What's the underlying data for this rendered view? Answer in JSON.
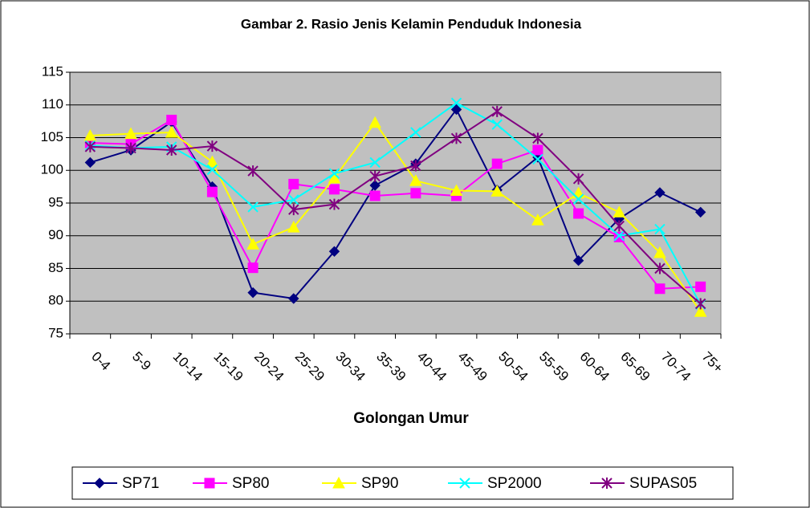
{
  "chart_data": {
    "type": "line",
    "title": "Gambar 2. Rasio Jenis Kelamin Penduduk Indonesia",
    "x_label": "Golongan Umur",
    "categories": [
      "0-4",
      "5-9",
      "10-14",
      "15-19",
      "20-24",
      "25-29",
      "30-34",
      "35-39",
      "40-44",
      "45-49",
      "50-54",
      "55-59",
      "60-64",
      "65-69",
      "70-74",
      "75+"
    ],
    "ylim": [
      75,
      115
    ],
    "yticks": [
      75,
      80,
      85,
      90,
      95,
      100,
      105,
      110,
      115
    ],
    "grid": true,
    "legend": "bottom",
    "series": [
      {
        "name": "SP71",
        "color": "#000080",
        "marker": "diamond",
        "values": [
          101.2,
          103.1,
          107.4,
          97.5,
          81.3,
          80.4,
          87.6,
          97.7,
          101.0,
          109.3,
          97.0,
          102.0,
          86.2,
          92.6,
          96.6,
          93.6
        ]
      },
      {
        "name": "SP80",
        "color": "#ff00ff",
        "marker": "square",
        "values": [
          104.2,
          104.0,
          107.7,
          96.7,
          85.1,
          97.9,
          97.1,
          96.1,
          96.5,
          96.1,
          101.0,
          103.1,
          93.4,
          89.8,
          81.9,
          82.2
        ]
      },
      {
        "name": "SP90",
        "color": "#ffff00",
        "marker": "triangle",
        "values": [
          105.3,
          105.6,
          105.8,
          101.3,
          88.7,
          91.3,
          98.8,
          107.3,
          98.4,
          96.9,
          96.8,
          92.4,
          96.5,
          93.6,
          87.4,
          78.4
        ]
      },
      {
        "name": "SP2000",
        "color": "#00ffff",
        "marker": "x",
        "values": [
          103.8,
          103.4,
          103.6,
          100.1,
          94.4,
          95.5,
          99.5,
          101.2,
          105.8,
          110.3,
          107.0,
          101.7,
          95.6,
          90.0,
          91.0,
          79.5
        ]
      },
      {
        "name": "SUPAS05",
        "color": "#800080",
        "marker": "star",
        "values": [
          103.6,
          103.4,
          103.1,
          103.7,
          99.9,
          94.0,
          94.8,
          99.1,
          100.7,
          104.9,
          109.0,
          104.9,
          98.7,
          91.5,
          85.0,
          79.6
        ]
      }
    ]
  }
}
